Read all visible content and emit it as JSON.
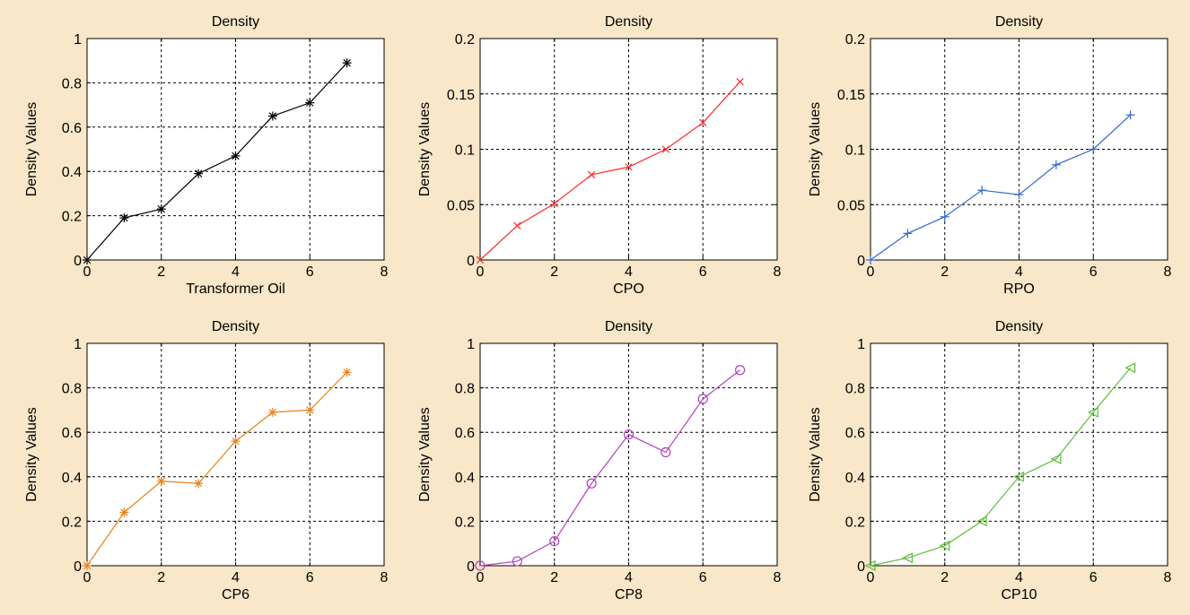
{
  "figure": {
    "background": "#f8e7c8"
  },
  "chart_data": [
    {
      "type": "line",
      "title": "Density",
      "xlabel": "Transformer Oil",
      "ylabel": "Density Values",
      "xlim": [
        0,
        8
      ],
      "ylim": [
        0,
        1
      ],
      "xticks": [
        "0",
        "2",
        "4",
        "6",
        "8"
      ],
      "yticks": [
        "0",
        "0.2",
        "0.4",
        "0.6",
        "0.8",
        "1"
      ],
      "grid": true,
      "series": [
        {
          "color": "#000000",
          "marker": "star",
          "x": [
            0,
            1,
            2,
            3,
            4,
            5,
            6,
            7
          ],
          "y": [
            0,
            0.19,
            0.23,
            0.39,
            0.47,
            0.65,
            0.71,
            0.89
          ]
        }
      ]
    },
    {
      "type": "line",
      "title": "Density",
      "xlabel": "CPO",
      "ylabel": "Density Values",
      "xlim": [
        0,
        8
      ],
      "ylim": [
        0,
        0.2
      ],
      "xticks": [
        "0",
        "2",
        "4",
        "6",
        "8"
      ],
      "yticks": [
        "0",
        "0.05",
        "0.1",
        "0.15",
        "0.2"
      ],
      "grid": true,
      "series": [
        {
          "color": "#ff2a2a",
          "marker": "x",
          "x": [
            0,
            1,
            2,
            3,
            4,
            5,
            6,
            7
          ],
          "y": [
            0,
            0.031,
            0.051,
            0.077,
            0.084,
            0.1,
            0.124,
            0.161
          ]
        }
      ]
    },
    {
      "type": "line",
      "title": "Density",
      "xlabel": "RPO",
      "ylabel": "Density Values",
      "xlim": [
        0,
        8
      ],
      "ylim": [
        0,
        0.2
      ],
      "xticks": [
        "0",
        "2",
        "4",
        "6",
        "8"
      ],
      "yticks": [
        "0",
        "0.05",
        "0.1",
        "0.15",
        "0.2"
      ],
      "grid": true,
      "series": [
        {
          "color": "#3366cc",
          "marker": "plus",
          "x": [
            0,
            1,
            2,
            3,
            4,
            5,
            6,
            7
          ],
          "y": [
            0,
            0.024,
            0.039,
            0.063,
            0.059,
            0.086,
            0.1,
            0.131
          ]
        }
      ]
    },
    {
      "type": "line",
      "title": "Density",
      "xlabel": "CP6",
      "ylabel": "Density Values",
      "xlim": [
        0,
        8
      ],
      "ylim": [
        0,
        1
      ],
      "xticks": [
        "0",
        "2",
        "4",
        "6",
        "8"
      ],
      "yticks": [
        "0",
        "0.2",
        "0.4",
        "0.6",
        "0.8",
        "1"
      ],
      "grid": true,
      "series": [
        {
          "color": "#e8821c",
          "marker": "star",
          "x": [
            0,
            1,
            2,
            3,
            4,
            5,
            6,
            7
          ],
          "y": [
            0,
            0.24,
            0.38,
            0.37,
            0.56,
            0.69,
            0.7,
            0.87
          ]
        }
      ]
    },
    {
      "type": "line",
      "title": "Density",
      "xlabel": "CP8",
      "ylabel": "Density Values",
      "xlim": [
        0,
        8
      ],
      "ylim": [
        0,
        1
      ],
      "xticks": [
        "0",
        "2",
        "4",
        "6",
        "8"
      ],
      "yticks": [
        "0",
        "0.2",
        "0.4",
        "0.6",
        "0.8",
        "1"
      ],
      "grid": true,
      "series": [
        {
          "color": "#b53fbf",
          "marker": "circle",
          "x": [
            0,
            1,
            2,
            3,
            4,
            5,
            6,
            7
          ],
          "y": [
            0,
            0.02,
            0.11,
            0.37,
            0.59,
            0.51,
            0.75,
            0.88
          ]
        }
      ]
    },
    {
      "type": "line",
      "title": "Density",
      "xlabel": "CP10",
      "ylabel": "Density Values",
      "xlim": [
        0,
        8
      ],
      "ylim": [
        0,
        1
      ],
      "xticks": [
        "0",
        "2",
        "4",
        "6",
        "8"
      ],
      "yticks": [
        "0",
        "0.2",
        "0.4",
        "0.6",
        "0.8",
        "1"
      ],
      "grid": true,
      "series": [
        {
          "color": "#5cbf3a",
          "marker": "triangle-left",
          "x": [
            0,
            1,
            2,
            3,
            4,
            5,
            6,
            7
          ],
          "y": [
            0,
            0.035,
            0.09,
            0.2,
            0.4,
            0.48,
            0.69,
            0.89
          ]
        }
      ]
    }
  ]
}
